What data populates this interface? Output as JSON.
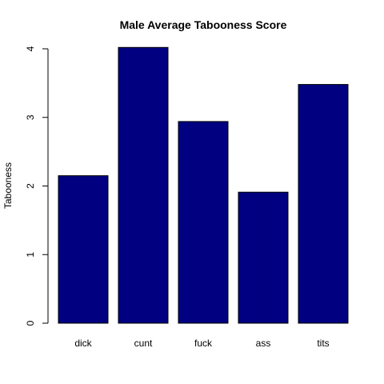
{
  "chart_data": {
    "type": "bar",
    "title": "Male Average Tabooness Score",
    "xlabel": "",
    "ylabel": "Tabooness",
    "categories": [
      "dick",
      "cunt",
      "fuck",
      "ass",
      "tits"
    ],
    "values": [
      2.15,
      4.02,
      2.94,
      1.91,
      3.48
    ],
    "ylim": [
      0,
      4
    ],
    "yticks": [
      "0",
      "1",
      "2",
      "3",
      "4"
    ],
    "grid": false,
    "bar_color": "#000080",
    "bar_border_color": "#000000"
  }
}
